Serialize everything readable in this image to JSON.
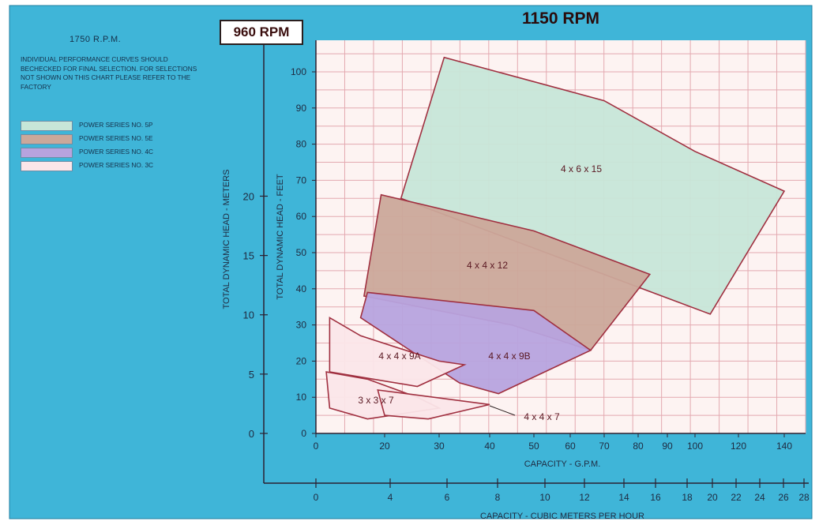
{
  "colors": {
    "background_blue": "#3fb5d8",
    "grid_paper": "#fdf3f2",
    "grid_line": "#e3a9b0",
    "axis": "#2c2030",
    "series_5p": "#c7e6d8",
    "series_5e": "#cba89a",
    "series_4c": "#b7a3de",
    "series_3c": "#fbe6e9",
    "region_border": "#a03040"
  },
  "header": {
    "rpm_960": "960 RPM",
    "rpm_1150": "1150 RPM"
  },
  "legend": {
    "rpm": "1750 R.P.M.",
    "note": "INDIVIDUAL PERFORMANCE CURVES SHOULD BECHECKED FOR FINAL SELECTION. FOR SELECTIONS NOT SHOWN ON THIS CHART PLEASE REFER TO THE FACTORY",
    "items": [
      {
        "label": "POWER SERIES NO. 5P",
        "color": "#c7e6d8"
      },
      {
        "label": "POWER SERIES NO. 5E",
        "color": "#cba89a"
      },
      {
        "label": "POWER SERIES NO. 4C",
        "color": "#b7a3de"
      },
      {
        "label": "POWER SERIES NO. 3C",
        "color": "#fbe6e9"
      }
    ]
  },
  "chart_data": {
    "type": "area",
    "title": "1150 RPM",
    "xlabel": "CAPACITY - G.P.M.",
    "ylabel": "TOTAL DYNAMIC HEAD - FEET",
    "ylabel_meters": "TOTAL DYNAMIC HEAD - METERS",
    "xlabel_metric": "CAPACITY - CUBIC METERS PER HOUR",
    "x_ticks": [
      "0",
      "20",
      "30",
      "40",
      "50",
      "60",
      "70",
      "80",
      "90",
      "100",
      "120",
      "140"
    ],
    "y_ticks": [
      "0",
      "10",
      "20",
      "30",
      "40",
      "50",
      "60",
      "70",
      "80",
      "90",
      "100"
    ],
    "y_ticks_meters": [
      "0",
      "5",
      "10",
      "15",
      "20"
    ],
    "x_ticks_metric": [
      "0",
      "4",
      "6",
      "8",
      "10",
      "12",
      "14",
      "16",
      "18",
      "20",
      "22",
      "24",
      "26",
      "28"
    ],
    "ylim": [
      0,
      100
    ],
    "grid": true,
    "log_scale_x": true,
    "regions": [
      {
        "label": "4 x 6 x 15",
        "series": "POWER SERIES NO. 5P",
        "color": "#c7e6d8",
        "polygon": [
          [
            23,
            65
          ],
          [
            31,
            104
          ],
          [
            70,
            92
          ],
          [
            100,
            78
          ],
          [
            140,
            67
          ],
          [
            107,
            33
          ]
        ]
      },
      {
        "label": "4 x 4 x 12",
        "series": "POWER SERIES NO. 5E",
        "color": "#cba89a",
        "polygon": [
          [
            19,
            66
          ],
          [
            14,
            38
          ],
          [
            45,
            30
          ],
          [
            66,
            23
          ],
          [
            84,
            44
          ],
          [
            50,
            56
          ]
        ]
      },
      {
        "label": "4 x 4 x 9B",
        "series": "POWER SERIES NO. 4C",
        "color": "#b7a3de",
        "polygon": [
          [
            15,
            39
          ],
          [
            13,
            32
          ],
          [
            34,
            14
          ],
          [
            42,
            11
          ],
          [
            66,
            23
          ],
          [
            50,
            34
          ]
        ]
      },
      {
        "label": "4 x 4 x 9A",
        "series": "POWER SERIES NO. 3C",
        "color": "#fbe6e9",
        "polygon": [
          [
            4,
            32
          ],
          [
            13,
            27
          ],
          [
            30,
            20
          ],
          [
            35,
            19
          ],
          [
            26,
            13
          ],
          [
            4,
            17
          ]
        ]
      },
      {
        "label": "3 x 3 x 7",
        "series": "POWER SERIES NO. 3C",
        "color": "#fbe6e9",
        "polygon": [
          [
            3,
            17
          ],
          [
            15,
            15
          ],
          [
            26,
            10
          ],
          [
            30,
            7
          ],
          [
            15,
            4
          ],
          [
            4,
            7
          ]
        ]
      },
      {
        "label": "4 x 4 x 7",
        "series": "POWER SERIES NO. 3C",
        "color": "#fbe6e9",
        "polygon": [
          [
            18,
            12
          ],
          [
            40,
            8
          ],
          [
            28,
            4
          ],
          [
            20,
            5
          ]
        ]
      }
    ]
  }
}
